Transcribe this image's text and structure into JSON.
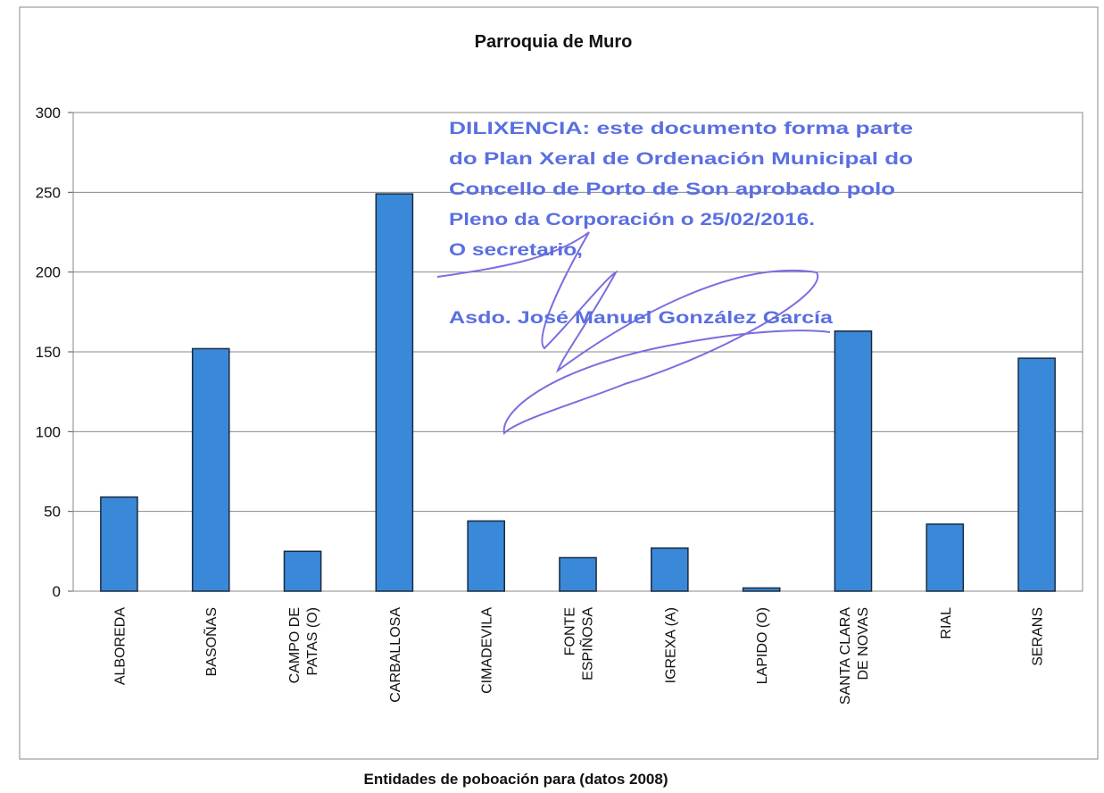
{
  "chart_data": {
    "type": "bar",
    "title": "Parroquia de Muro",
    "x_label": "Entidades de poboación para (datos 2008)",
    "categories": [
      "ALBOREDA",
      "BASOÑAS",
      "CAMPO DE\nPATAS (O)",
      "CARBALLOSA",
      "CIMADEVILA",
      "FONTE\nESPIÑOSA",
      "IGREXA (A)",
      "LAPIDO (O)",
      "SANTA CLARA\nDE NOVAS",
      "RIAL",
      "SERANS"
    ],
    "values": [
      59,
      152,
      25,
      249,
      44,
      21,
      27,
      2,
      163,
      42,
      146
    ],
    "color": "#3a88d8",
    "ylim": [
      0,
      300
    ],
    "yticks": [
      0,
      50,
      100,
      150,
      200,
      250,
      300
    ],
    "grid": true,
    "annotations": [
      "DILIXENCIA: este documento forma parte",
      "do Plan Xeral de Ordenación Municipal do",
      "Concello de Porto de Son aprobado polo",
      "Pleno da Corporación o 25/02/2016.",
      "O secretario,",
      "Asdo. José Manuel González García"
    ]
  }
}
